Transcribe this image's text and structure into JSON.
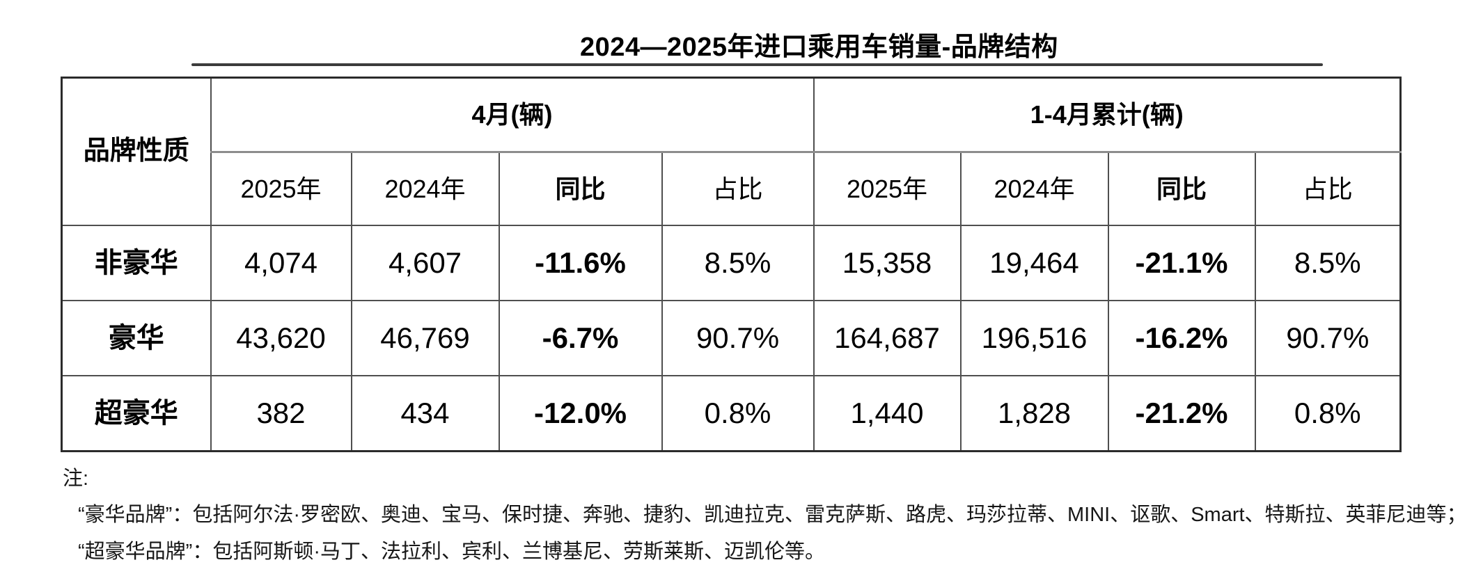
{
  "title": "2024—2025年进口乘用车销量-品牌结构",
  "table": {
    "corner_header": "品牌性质",
    "group_headers": [
      "4月(辆)",
      "1-4月累计(辆)"
    ],
    "sub_headers": [
      "2025年",
      "2024年",
      "同比",
      "占比"
    ],
    "rows": [
      {
        "label": "非豪华",
        "values": [
          "4,074",
          "4,607",
          "-11.6%",
          "8.5%",
          "15,358",
          "19,464",
          "-21.1%",
          "8.5%"
        ]
      },
      {
        "label": "豪华",
        "values": [
          "43,620",
          "46,769",
          "-6.7%",
          "90.7%",
          "164,687",
          "196,516",
          "-16.2%",
          "90.7%"
        ]
      },
      {
        "label": "超豪华",
        "values": [
          "382",
          "434",
          "-12.0%",
          "0.8%",
          "1,440",
          "1,828",
          "-21.2%",
          "0.8%"
        ]
      }
    ]
  },
  "notes": {
    "label": "注:",
    "lines": [
      "“豪华品牌”：包括阿尔法·罗密欧、奥迪、宝马、保时捷、奔驰、捷豹、凯迪拉克、雷克萨斯、路虎、玛莎拉蒂、MINI、讴歌、Smart、特斯拉、英菲尼迪等；",
      "“超豪华品牌”：包括阿斯顿·马丁、法拉利、宾利、兰博基尼、劳斯莱斯、迈凯伦等。"
    ]
  },
  "chart_data": {
    "type": "table",
    "title": "2024—2025年进口乘用车销量-品牌结构",
    "column_groups": [
      "4月(辆)",
      "1-4月累计(辆)"
    ],
    "columns": [
      "品牌性质",
      "4月(辆) 2025年",
      "4月(辆) 2024年",
      "4月(辆) 同比",
      "4月(辆) 占比",
      "1-4月累计(辆) 2025年",
      "1-4月累计(辆) 2024年",
      "1-4月累计(辆) 同比",
      "1-4月累计(辆) 占比"
    ],
    "rows": [
      [
        "非豪华",
        4074,
        4607,
        "-11.6%",
        "8.5%",
        15358,
        19464,
        "-21.1%",
        "8.5%"
      ],
      [
        "豪华",
        43620,
        46769,
        "-6.7%",
        "90.7%",
        164687,
        196516,
        "-16.2%",
        "90.7%"
      ],
      [
        "超豪华",
        382,
        434,
        "-12.0%",
        "0.8%",
        1440,
        1828,
        "-21.2%",
        "0.8%"
      ]
    ],
    "notes": [
      "“豪华品牌”：包括阿尔法·罗密欧、奥迪、宝马、保时捷、奔驰、捷豹、凯迪拉克、雷克萨斯、路虎、玛莎拉蒂、MINI、讴歌、Smart、特斯拉、英菲尼迪等；",
      "“超豪华品牌”：包括阿斯顿·马丁、法拉利、宾利、兰博基尼、劳斯莱斯、迈凯伦等。"
    ]
  }
}
